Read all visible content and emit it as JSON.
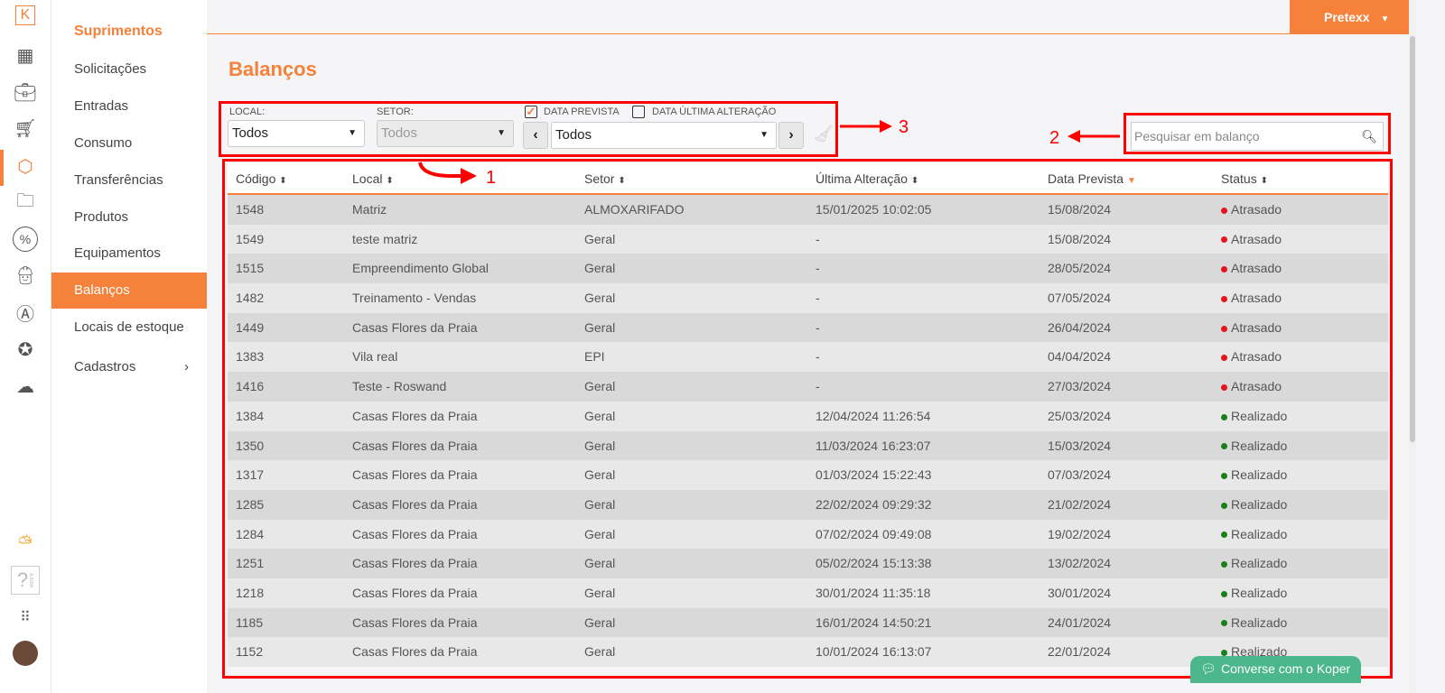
{
  "icon_sidebar": {
    "items": [
      "logo-k-icon",
      "dashboard-icon",
      "briefcase-icon",
      "cart-icon",
      "box-icon",
      "folder-icon",
      "percent-icon",
      "worker-icon",
      "people-icon",
      "award-icon",
      "cloud-upload-icon"
    ],
    "bottom": [
      "weather-icon",
      "help-icon",
      "apps-grid-icon",
      "avatar"
    ],
    "help_label": "AJUDA",
    "logo": "K"
  },
  "nav": {
    "title": "Suprimentos",
    "items": [
      {
        "label": "Solicitações"
      },
      {
        "label": "Entradas"
      },
      {
        "label": "Consumo"
      },
      {
        "label": "Transferências"
      },
      {
        "label": "Produtos"
      },
      {
        "label": "Equipamentos"
      },
      {
        "label": "Balanços",
        "active": true
      },
      {
        "label": "Locais de estoque"
      },
      {
        "label": "Cadastros"
      }
    ]
  },
  "topbar": {
    "user": "Pretexx"
  },
  "page": {
    "title": "Balanços"
  },
  "filters": {
    "local_label": "LOCAL:",
    "local_value": "Todos",
    "setor_label": "SETOR:",
    "setor_value": "Todos",
    "data_prevista_label": "DATA PREVISTA",
    "data_prevista_checked": true,
    "data_alteracao_label": "DATA ÚLTIMA ALTERAÇÃO",
    "data_alteracao_checked": false,
    "period_value": "Todos",
    "prev": "‹",
    "next": "›"
  },
  "search": {
    "placeholder": "Pesquisar em balanço"
  },
  "table": {
    "headers": [
      "Código",
      "Local",
      "Setor",
      "Última Alteração",
      "Data Prevista",
      "Status"
    ],
    "rows": [
      [
        "1548",
        "Matriz",
        "ALMOXARIFADO",
        "15/01/2025 10:02:05",
        "15/08/2024",
        "Atrasado"
      ],
      [
        "1549",
        "teste matriz",
        "Geral",
        "-",
        "15/08/2024",
        "Atrasado"
      ],
      [
        "1515",
        "Empreendimento Global",
        "Geral",
        "-",
        "28/05/2024",
        "Atrasado"
      ],
      [
        "1482",
        "Treinamento - Vendas",
        "Geral",
        "-",
        "07/05/2024",
        "Atrasado"
      ],
      [
        "1449",
        "Casas Flores da Praia",
        "Geral",
        "-",
        "26/04/2024",
        "Atrasado"
      ],
      [
        "1383",
        "Vila real",
        "EPI",
        "-",
        "04/04/2024",
        "Atrasado"
      ],
      [
        "1416",
        "Teste - Roswand",
        "Geral",
        "-",
        "27/03/2024",
        "Atrasado"
      ],
      [
        "1384",
        "Casas Flores da Praia",
        "Geral",
        "12/04/2024 11:26:54",
        "25/03/2024",
        "Realizado"
      ],
      [
        "1350",
        "Casas Flores da Praia",
        "Geral",
        "11/03/2024 16:23:07",
        "15/03/2024",
        "Realizado"
      ],
      [
        "1317",
        "Casas Flores da Praia",
        "Geral",
        "01/03/2024 15:22:43",
        "07/03/2024",
        "Realizado"
      ],
      [
        "1285",
        "Casas Flores da Praia",
        "Geral",
        "22/02/2024 09:29:32",
        "21/02/2024",
        "Realizado"
      ],
      [
        "1284",
        "Casas Flores da Praia",
        "Geral",
        "07/02/2024 09:49:08",
        "19/02/2024",
        "Realizado"
      ],
      [
        "1251",
        "Casas Flores da Praia",
        "Geral",
        "05/02/2024 15:13:38",
        "13/02/2024",
        "Realizado"
      ],
      [
        "1218",
        "Casas Flores da Praia",
        "Geral",
        "30/01/2024 11:35:18",
        "30/01/2024",
        "Realizado"
      ],
      [
        "1185",
        "Casas Flores da Praia",
        "Geral",
        "16/01/2024 14:50:21",
        "24/01/2024",
        "Realizado"
      ],
      [
        "1152",
        "Casas Flores da Praia",
        "Geral",
        "10/01/2024 16:13:07",
        "22/01/2024",
        "Realizado"
      ]
    ]
  },
  "status_colors": {
    "Atrasado": "#e8141c",
    "Realizado": "#1a7f1a"
  },
  "accent": "#f5813a",
  "annotations": [
    "1",
    "2",
    "3"
  ],
  "chat": {
    "label": "Converse com o Koper"
  }
}
